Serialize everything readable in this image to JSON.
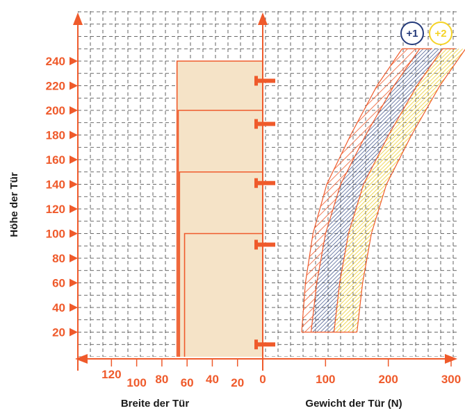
{
  "chart_data": {
    "type": "diagram",
    "y_axis": {
      "label": "Höhe der Tür",
      "ticks": [
        20,
        40,
        60,
        80,
        100,
        120,
        140,
        160,
        180,
        200,
        220,
        240
      ]
    },
    "x_left_axis": {
      "label": "Breite der Tür",
      "ticks": [
        120,
        100,
        80,
        60,
        40,
        20,
        0
      ]
    },
    "x_right_axis": {
      "label": "Gewicht der Tür (N)",
      "ticks": [
        100,
        200,
        300
      ]
    },
    "door_zones": [
      {
        "max_height": 240,
        "max_width": 68
      },
      {
        "max_height": 200,
        "max_width": 67
      },
      {
        "max_height": 150,
        "max_width": 66
      },
      {
        "max_height": 100,
        "max_width": 62
      }
    ],
    "hinge_heights": [
      224,
      189,
      141,
      91,
      10
    ],
    "weight_bands": [
      {
        "label": "",
        "color": "#ef5a2b",
        "left_x": [
          62,
          68,
          80,
          102,
          140,
          182,
          222,
          250
        ],
        "right_x": [
          77,
          86,
          100,
          124,
          164,
          209,
          250,
          270
        ],
        "y": [
          20,
          60,
          100,
          140,
          180,
          220,
          250,
          250
        ]
      },
      {
        "label": "+1",
        "color": "#243a7a"
      },
      {
        "label": "+2",
        "color": "#f5d327"
      }
    ],
    "badges": [
      {
        "label": "+1",
        "color": "#243a7a"
      },
      {
        "label": "+2",
        "color": "#f5d327"
      }
    ],
    "grid": true,
    "colors": {
      "accent": "#ef5a2b",
      "zone_fill": "#f5e3c7",
      "grid": "#3a3a3a"
    }
  }
}
